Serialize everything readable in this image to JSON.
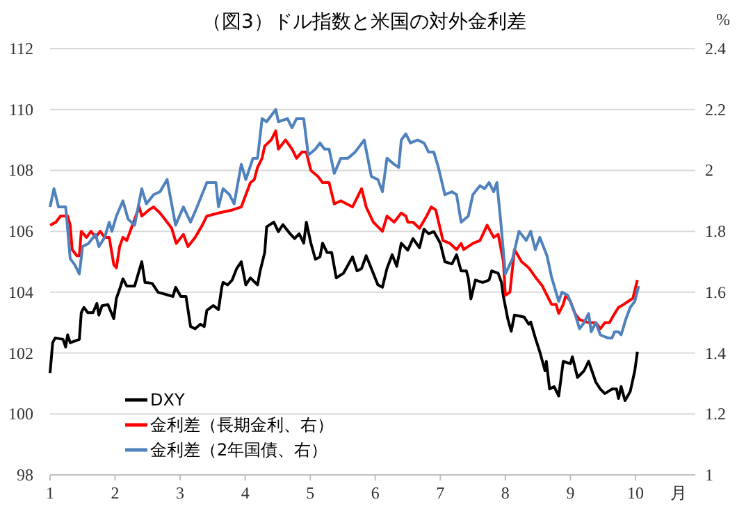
{
  "chart_data": {
    "type": "line",
    "title": "（図3）ドル指数と米国の対外金利差",
    "xlabel": "月",
    "y2label": "%",
    "xlim": [
      1,
      10.92
    ],
    "xticks": [
      1,
      2,
      3,
      4,
      5,
      6,
      7,
      8,
      9,
      10
    ],
    "ylim": [
      98,
      112
    ],
    "yticks": [
      98,
      100,
      102,
      104,
      106,
      108,
      110,
      112
    ],
    "y2lim": [
      1,
      2.4
    ],
    "y2ticks": [
      1,
      1.2,
      1.4,
      1.6,
      1.8,
      2,
      2.2,
      2.4
    ],
    "grid": "y",
    "legend": "bottom left",
    "line_style": "solid",
    "marker": "none",
    "series": [
      {
        "name": "DXY",
        "color": "#000000",
        "x": [
          1.0,
          1.04,
          1.08,
          1.2,
          1.24,
          1.27,
          1.31,
          1.45,
          1.48,
          1.52,
          1.58,
          1.66,
          1.72,
          1.75,
          1.8,
          1.89,
          1.98,
          2.02,
          2.07,
          2.12,
          2.18,
          2.3,
          2.41,
          2.46,
          2.57,
          2.66,
          2.89,
          2.93,
          3.01,
          3.09,
          3.16,
          3.23,
          3.31,
          3.37,
          3.41,
          3.51,
          3.59,
          3.64,
          3.66,
          3.73,
          3.8,
          3.87,
          3.94,
          4.01,
          4.08,
          4.19,
          4.23,
          4.3,
          4.33,
          4.44,
          4.51,
          4.58,
          4.69,
          4.76,
          4.83,
          4.9,
          4.94,
          5.01,
          5.08,
          5.15,
          5.19,
          5.26,
          5.33,
          5.4,
          5.51,
          5.65,
          5.72,
          5.79,
          5.86,
          5.94,
          6.01,
          6.04,
          6.11,
          6.18,
          6.26,
          6.33,
          6.4,
          6.5,
          6.58,
          6.68,
          6.75,
          6.82,
          6.9,
          7.0,
          7.07,
          7.18,
          7.25,
          7.32,
          7.4,
          7.43,
          7.47,
          7.54,
          7.65,
          7.75,
          7.79,
          7.89,
          7.94,
          7.97,
          8.04,
          8.09,
          8.14,
          8.29,
          8.36,
          8.39,
          8.46,
          8.53,
          8.61,
          8.63,
          8.68,
          8.75,
          8.82,
          8.89,
          9.0,
          9.03,
          9.11,
          9.21,
          9.28,
          9.39,
          9.46,
          9.53,
          9.64,
          9.71,
          9.74,
          9.78,
          9.84,
          9.92,
          9.99,
          10.03
        ],
        "values": [
          101.35,
          102.34,
          102.5,
          102.45,
          102.2,
          102.6,
          102.34,
          102.45,
          103.33,
          103.5,
          103.33,
          103.33,
          103.63,
          103.25,
          103.56,
          103.59,
          103.13,
          103.8,
          104.1,
          104.44,
          104.2,
          104.2,
          105.0,
          104.32,
          104.29,
          104.0,
          103.86,
          104.16,
          103.86,
          103.86,
          102.87,
          102.8,
          102.95,
          102.87,
          103.4,
          103.56,
          103.43,
          104.16,
          104.32,
          104.24,
          104.4,
          104.78,
          105.0,
          104.24,
          104.47,
          104.24,
          104.7,
          105.3,
          106.15,
          106.3,
          105.99,
          106.22,
          105.92,
          105.76,
          105.92,
          105.61,
          106.3,
          105.61,
          105.08,
          105.16,
          105.61,
          105.3,
          105.3,
          104.47,
          104.62,
          105.16,
          104.7,
          104.78,
          105.2,
          104.78,
          104.4,
          104.24,
          104.16,
          104.78,
          105.23,
          104.85,
          105.61,
          105.38,
          105.76,
          105.46,
          106.07,
          105.92,
          105.99,
          105.61,
          105.0,
          104.93,
          105.23,
          104.7,
          104.7,
          104.47,
          103.78,
          104.4,
          104.32,
          104.4,
          104.7,
          104.62,
          104.32,
          103.86,
          103.1,
          102.72,
          103.25,
          103.18,
          102.95,
          103.02,
          102.5,
          102.04,
          101.42,
          101.73,
          100.82,
          100.9,
          100.59,
          101.73,
          101.65,
          101.88,
          101.2,
          101.42,
          101.73,
          101.05,
          100.82,
          100.67,
          100.82,
          100.82,
          100.51,
          100.9,
          100.44,
          100.74,
          101.42,
          102.04
        ]
      },
      {
        "name": "金利差（長期金利、右）",
        "color": "#ff0000",
        "axis": "y2",
        "x": [
          1.0,
          1.09,
          1.16,
          1.27,
          1.31,
          1.34,
          1.41,
          1.45,
          1.48,
          1.56,
          1.63,
          1.7,
          1.77,
          1.84,
          1.91,
          1.98,
          2.02,
          2.07,
          2.12,
          2.18,
          2.37,
          2.41,
          2.52,
          2.59,
          2.69,
          2.8,
          2.87,
          2.94,
          3.05,
          3.12,
          3.23,
          3.34,
          3.41,
          3.59,
          3.8,
          3.94,
          4.01,
          4.08,
          4.14,
          4.19,
          4.26,
          4.3,
          4.4,
          4.47,
          4.51,
          4.62,
          4.72,
          4.79,
          4.87,
          4.94,
          5.01,
          5.12,
          5.19,
          5.29,
          5.37,
          5.47,
          5.65,
          5.79,
          5.86,
          5.97,
          6.11,
          6.18,
          6.29,
          6.4,
          6.47,
          6.5,
          6.58,
          6.68,
          6.79,
          6.86,
          6.93,
          7.04,
          7.15,
          7.25,
          7.32,
          7.36,
          7.5,
          7.61,
          7.72,
          7.82,
          7.89,
          7.97,
          8.0,
          8.07,
          8.14,
          8.25,
          8.36,
          8.46,
          8.57,
          8.64,
          8.71,
          8.78,
          8.82,
          8.89,
          8.93,
          9.0,
          9.07,
          9.14,
          9.28,
          9.39,
          9.46,
          9.53,
          9.6,
          9.68,
          9.74,
          9.82,
          9.89,
          9.96,
          10.03
        ],
        "values": [
          1.82,
          1.83,
          1.85,
          1.85,
          1.82,
          1.74,
          1.72,
          1.72,
          1.8,
          1.78,
          1.8,
          1.78,
          1.8,
          1.78,
          1.78,
          1.69,
          1.68,
          1.75,
          1.78,
          1.77,
          1.88,
          1.85,
          1.87,
          1.88,
          1.86,
          1.83,
          1.81,
          1.76,
          1.79,
          1.75,
          1.78,
          1.82,
          1.85,
          1.86,
          1.87,
          1.88,
          1.92,
          1.96,
          1.97,
          2.01,
          2.04,
          2.08,
          2.1,
          2.13,
          2.07,
          2.1,
          2.07,
          2.04,
          2.06,
          2.06,
          2.0,
          1.98,
          1.96,
          1.96,
          1.89,
          1.9,
          1.88,
          1.94,
          1.88,
          1.83,
          1.8,
          1.85,
          1.83,
          1.86,
          1.85,
          1.83,
          1.83,
          1.81,
          1.85,
          1.88,
          1.87,
          1.77,
          1.76,
          1.74,
          1.76,
          1.74,
          1.76,
          1.77,
          1.82,
          1.78,
          1.79,
          1.7,
          1.59,
          1.6,
          1.74,
          1.7,
          1.68,
          1.65,
          1.62,
          1.59,
          1.56,
          1.56,
          1.53,
          1.56,
          1.59,
          1.57,
          1.53,
          1.51,
          1.5,
          1.5,
          1.48,
          1.5,
          1.5,
          1.53,
          1.55,
          1.56,
          1.57,
          1.58,
          1.64
        ]
      },
      {
        "name": "金利差（2年国債、右）",
        "color": "#4f81bd",
        "axis": "y2",
        "x": [
          1.0,
          1.06,
          1.13,
          1.2,
          1.24,
          1.31,
          1.38,
          1.45,
          1.5,
          1.59,
          1.7,
          1.75,
          1.84,
          1.91,
          1.95,
          2.02,
          2.12,
          2.2,
          2.3,
          2.41,
          2.48,
          2.59,
          2.69,
          2.8,
          2.93,
          3.05,
          3.16,
          3.26,
          3.41,
          3.55,
          3.59,
          3.66,
          3.76,
          3.83,
          3.94,
          4.01,
          4.12,
          4.19,
          4.26,
          4.33,
          4.4,
          4.47,
          4.51,
          4.65,
          4.72,
          4.79,
          4.9,
          4.97,
          5.08,
          5.15,
          5.22,
          5.29,
          5.37,
          5.47,
          5.58,
          5.69,
          5.83,
          5.94,
          6.04,
          6.11,
          6.18,
          6.29,
          6.36,
          6.4,
          6.47,
          6.54,
          6.65,
          6.75,
          6.82,
          6.9,
          6.97,
          7.07,
          7.18,
          7.25,
          7.32,
          7.43,
          7.5,
          7.61,
          7.68,
          7.75,
          7.82,
          7.87,
          7.93,
          8.0,
          8.11,
          8.21,
          8.32,
          8.39,
          8.46,
          8.53,
          8.64,
          8.71,
          8.82,
          8.87,
          8.96,
          9.07,
          9.14,
          9.21,
          9.28,
          9.32,
          9.39,
          9.46,
          9.57,
          9.64,
          9.68,
          9.74,
          9.78,
          9.85,
          9.92,
          9.99,
          10.05
        ],
        "values": [
          1.88,
          1.94,
          1.88,
          1.88,
          1.88,
          1.71,
          1.69,
          1.66,
          1.75,
          1.76,
          1.79,
          1.75,
          1.78,
          1.83,
          1.8,
          1.85,
          1.9,
          1.84,
          1.82,
          1.94,
          1.89,
          1.92,
          1.93,
          1.97,
          1.82,
          1.88,
          1.83,
          1.88,
          1.96,
          1.96,
          1.88,
          1.94,
          1.92,
          1.89,
          2.02,
          1.97,
          2.04,
          2.04,
          2.17,
          2.16,
          2.18,
          2.2,
          2.16,
          2.17,
          2.14,
          2.17,
          2.17,
          2.05,
          2.07,
          2.09,
          2.07,
          2.07,
          1.99,
          2.04,
          2.04,
          2.06,
          2.1,
          1.98,
          1.97,
          1.93,
          2.04,
          2.02,
          2.01,
          2.1,
          2.12,
          2.09,
          2.1,
          2.09,
          2.06,
          2.06,
          2.01,
          1.92,
          1.93,
          1.92,
          1.83,
          1.85,
          1.92,
          1.95,
          1.94,
          1.96,
          1.93,
          1.96,
          1.83,
          1.66,
          1.71,
          1.8,
          1.77,
          1.8,
          1.74,
          1.78,
          1.72,
          1.65,
          1.57,
          1.6,
          1.59,
          1.53,
          1.48,
          1.5,
          1.53,
          1.47,
          1.5,
          1.46,
          1.45,
          1.45,
          1.47,
          1.47,
          1.46,
          1.51,
          1.55,
          1.57,
          1.62
        ]
      }
    ]
  }
}
